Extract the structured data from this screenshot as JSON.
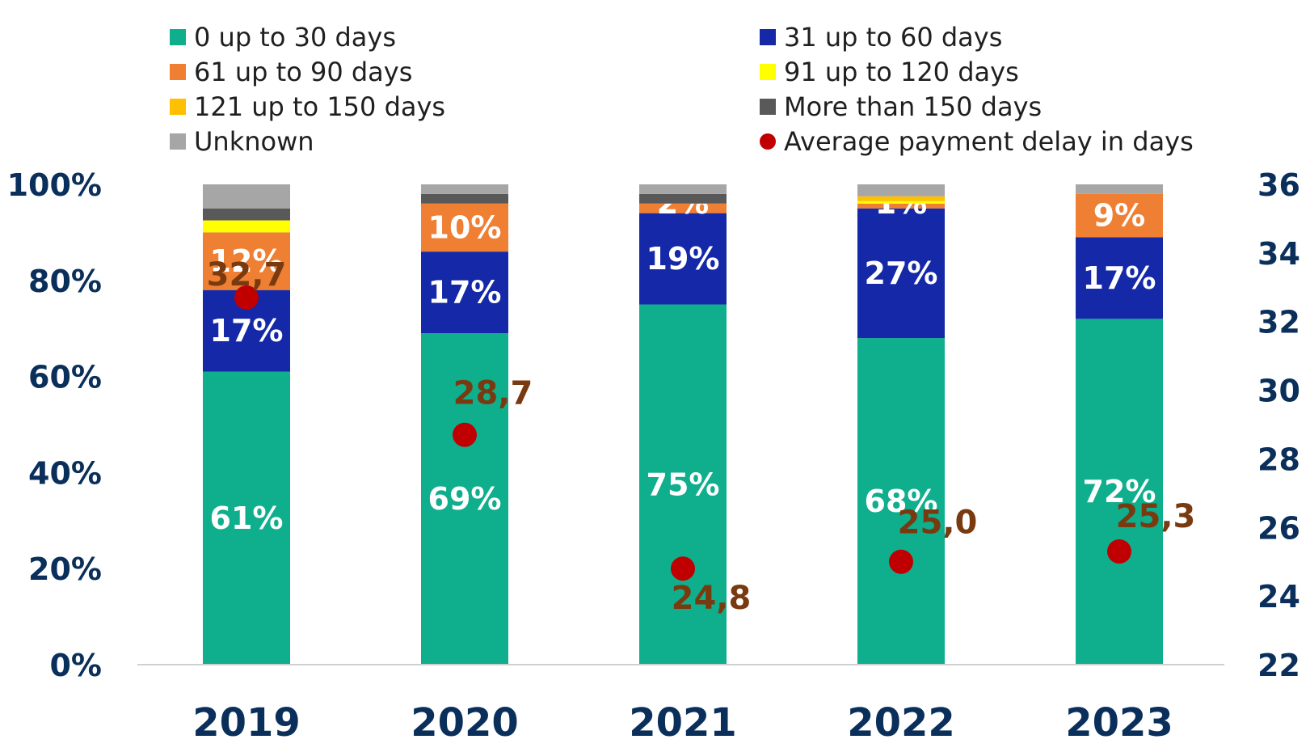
{
  "chart_data": {
    "type": "bar",
    "stacked": true,
    "categories": [
      "2019",
      "2020",
      "2021",
      "2022",
      "2023"
    ],
    "series": [
      {
        "name": "0 up to 30 days",
        "color": "#0fae8d",
        "values": [
          61,
          69,
          75,
          68,
          72
        ],
        "labels": [
          "61%",
          "69%",
          "75%",
          "68%",
          "72%"
        ]
      },
      {
        "name": "31 up to 60 days",
        "color": "#1428a8",
        "values": [
          17,
          17,
          19,
          27,
          17
        ],
        "labels": [
          "17%",
          "17%",
          "19%",
          "27%",
          "17%"
        ]
      },
      {
        "name": "61 up to 90 days",
        "color": "#ef7f33",
        "values": [
          12,
          10,
          2,
          1,
          9
        ],
        "labels": [
          "12%",
          "10%",
          "2%",
          "1%",
          "9%"
        ]
      },
      {
        "name": "91 up to 120 days",
        "color": "#ffff00",
        "values": [
          2.5,
          0,
          0,
          0.5,
          0
        ],
        "labels": [
          "",
          "",
          "",
          "",
          ""
        ]
      },
      {
        "name": "121 up to 150 days",
        "color": "#ffc000",
        "values": [
          0,
          0,
          0,
          1,
          0
        ],
        "labels": [
          "",
          "",
          "",
          "",
          ""
        ]
      },
      {
        "name": "More than 150 days",
        "color": "#595959",
        "values": [
          2.5,
          2,
          2,
          0,
          0
        ],
        "labels": [
          "",
          "",
          "",
          "",
          ""
        ]
      },
      {
        "name": "Unknown",
        "color": "#a6a6a6",
        "values": [
          5,
          2,
          2,
          2.5,
          2
        ],
        "labels": [
          "",
          "",
          "",
          "",
          ""
        ]
      }
    ],
    "line_series": {
      "name": "Average payment delay in days",
      "type": "scatter",
      "color": "#c00000",
      "values": [
        32.7,
        28.7,
        24.8,
        25.0,
        25.3
      ],
      "labels": [
        "32,7",
        "28,7",
        "24,8",
        "25,0",
        "25,3"
      ]
    },
    "y_left": {
      "ticks": [
        "0%",
        "20%",
        "40%",
        "60%",
        "80%",
        "100%"
      ],
      "range": [
        0,
        100
      ]
    },
    "y_right": {
      "ticks": [
        "22",
        "24",
        "26",
        "28",
        "30",
        "32",
        "34",
        "36"
      ],
      "range": [
        22,
        36
      ]
    },
    "legend_position": "top",
    "grid": false
  }
}
